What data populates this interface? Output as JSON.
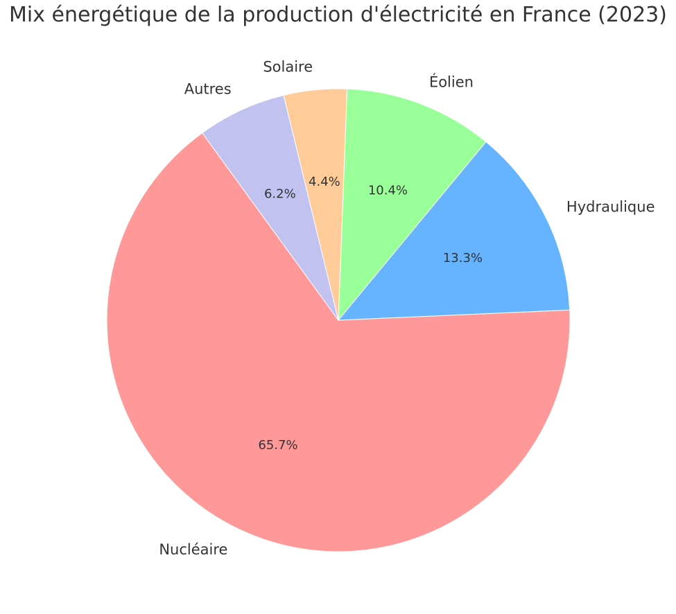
{
  "chart_data": {
    "type": "pie",
    "title": "Mix énergétique de la production d'électricité en France (2023)",
    "start_angle_deg": 126,
    "direction": "counterclockwise",
    "slices": [
      {
        "label": "Nucléaire",
        "value": 65.7,
        "pct_label": "65.7%",
        "color": "#ff9999"
      },
      {
        "label": "Hydraulique",
        "value": 13.3,
        "pct_label": "13.3%",
        "color": "#66b3ff"
      },
      {
        "label": "Éolien",
        "value": 10.4,
        "pct_label": "10.4%",
        "color": "#99ff99"
      },
      {
        "label": "Solaire",
        "value": 4.4,
        "pct_label": "4.4%",
        "color": "#ffcc99"
      },
      {
        "label": "Autres",
        "value": 6.2,
        "pct_label": "6.2%",
        "color": "#c2c2f0"
      }
    ]
  }
}
